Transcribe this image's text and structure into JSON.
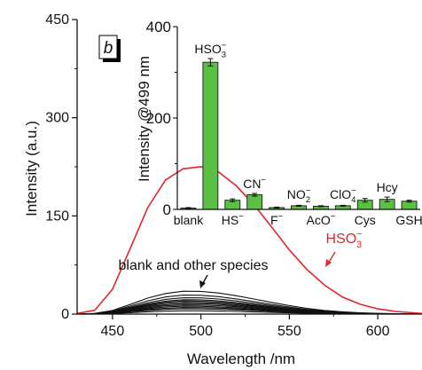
{
  "chart_data": [
    {
      "type": "line",
      "panel_label": "b",
      "xlabel": "Wavelength /nm",
      "ylabel": "Intensity (a.u.)",
      "xlim": [
        430,
        625
      ],
      "ylim": [
        0,
        450
      ],
      "x_ticks": [
        "450",
        "500",
        "550",
        "600"
      ],
      "y_ticks": [
        "0",
        "150",
        "300",
        "450"
      ],
      "annotations": {
        "hso3_label": "HSO",
        "hso3_sub": "3",
        "hso3_sup": "−",
        "blank_label": "blank and other species"
      },
      "series": [
        {
          "name": "HSO₃⁻",
          "color": "#e3262b",
          "x": [
            430,
            440,
            450,
            460,
            470,
            480,
            490,
            500,
            510,
            520,
            530,
            540,
            550,
            560,
            570,
            580,
            590,
            600,
            610,
            620,
            625
          ],
          "y": [
            1,
            6,
            38,
            100,
            163,
            205,
            222,
            225,
            217,
            196,
            167,
            133,
            98,
            68,
            44,
            26,
            15,
            8,
            4,
            2,
            1
          ]
        }
      ],
      "other_series": {
        "color": "#111111",
        "x": [
          430,
          440,
          450,
          460,
          470,
          480,
          490,
          500,
          510,
          520,
          530,
          540,
          550,
          560,
          570,
          580,
          590,
          600,
          610,
          620,
          625
        ],
        "profile": [
          0.0,
          0.03,
          0.16,
          0.42,
          0.7,
          0.9,
          1.0,
          0.99,
          0.92,
          0.8,
          0.66,
          0.51,
          0.37,
          0.25,
          0.16,
          0.1,
          0.06,
          0.03,
          0.02,
          0.01,
          0.0
        ],
        "peaks": [
          35,
          29,
          25,
          22,
          20,
          18,
          16,
          14,
          12,
          10,
          8,
          5
        ]
      }
    },
    {
      "type": "bar",
      "ylabel": "Intensity @499 nm",
      "ylim": [
        0,
        400
      ],
      "y_ticks": [
        "0",
        "200",
        "400"
      ],
      "bar_color": "#5bbf46",
      "categories": [
        {
          "label": "blank",
          "label_row": "bottom"
        },
        {
          "label": "HSO",
          "sub": "3",
          "sup": "−",
          "label_row": "top"
        },
        {
          "label": "HS",
          "sup": "−",
          "label_row": "bottom"
        },
        {
          "label": "CN",
          "sup": "−",
          "label_row": "top"
        },
        {
          "label": "F",
          "sup": "−",
          "label_row": "bottom"
        },
        {
          "label": "NO",
          "sub": "2",
          "sup": "−",
          "label_row": "top"
        },
        {
          "label": "AcO",
          "sup": "−",
          "label_row": "bottom"
        },
        {
          "label": "ClO",
          "sub": "4",
          "sup": "−",
          "label_row": "top"
        },
        {
          "label": "Cys",
          "label_row": "bottom"
        },
        {
          "label": "Hcy",
          "label_row": "top"
        },
        {
          "label": "GSH",
          "label_row": "bottom"
        }
      ],
      "values": [
        3,
        322,
        20,
        32,
        4,
        8,
        7,
        8,
        20,
        22,
        18
      ],
      "errors": [
        1,
        8,
        3,
        3,
        1,
        1,
        1,
        1,
        4,
        5,
        2
      ]
    }
  ]
}
